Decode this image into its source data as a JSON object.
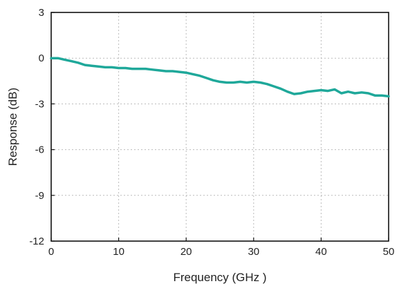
{
  "chart_data": {
    "type": "line",
    "xlabel": "Frequency (GHz )",
    "ylabel": "Response (dB)",
    "xlim": [
      0,
      50
    ],
    "ylim": [
      -12,
      3
    ],
    "xticks": [
      0,
      10,
      20,
      30,
      40,
      50
    ],
    "yticks": [
      3,
      0,
      -3,
      -6,
      -9,
      -12
    ],
    "xtick_labels": [
      "0",
      "10",
      "20",
      "30",
      "40",
      "50"
    ],
    "ytick_labels": [
      "3",
      "0",
      "-3",
      "-6",
      "-9",
      "-12"
    ],
    "grid": true,
    "legend": "none",
    "series": [
      {
        "color": "#1fa89a",
        "x": [
          0,
          1,
          2,
          3,
          4,
          5,
          6,
          7,
          8,
          9,
          10,
          11,
          12,
          13,
          14,
          15,
          16,
          17,
          18,
          19,
          20,
          21,
          22,
          23,
          24,
          25,
          26,
          27,
          28,
          29,
          30,
          31,
          32,
          33,
          34,
          35,
          36,
          37,
          38,
          39,
          40,
          41,
          42,
          43,
          44,
          45,
          46,
          47,
          48,
          49,
          50
        ],
        "y": [
          0.0,
          0.0,
          -0.1,
          -0.2,
          -0.3,
          -0.45,
          -0.5,
          -0.55,
          -0.6,
          -0.6,
          -0.65,
          -0.65,
          -0.7,
          -0.7,
          -0.7,
          -0.75,
          -0.8,
          -0.85,
          -0.85,
          -0.9,
          -0.95,
          -1.05,
          -1.15,
          -1.3,
          -1.45,
          -1.55,
          -1.6,
          -1.6,
          -1.55,
          -1.6,
          -1.55,
          -1.6,
          -1.7,
          -1.85,
          -2.0,
          -2.2,
          -2.35,
          -2.3,
          -2.2,
          -2.15,
          -2.1,
          -2.15,
          -2.05,
          -2.3,
          -2.2,
          -2.3,
          -2.25,
          -2.3,
          -2.45,
          -2.45,
          -2.5
        ]
      }
    ]
  }
}
